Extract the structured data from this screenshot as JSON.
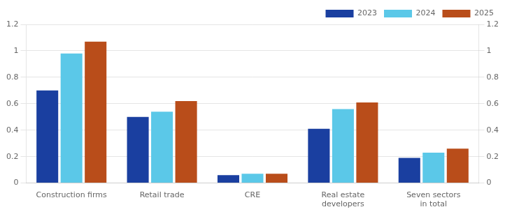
{
  "chart_data": {
    "type": "bar",
    "categories": [
      "Construction firms",
      "Retail trade",
      "CRE",
      "Real estate\ndevelopers",
      "Seven sectors\nin total"
    ],
    "series": [
      {
        "name": "2023",
        "color": "#1a3fa0",
        "values": [
          0.7,
          0.5,
          0.06,
          0.41,
          0.19
        ]
      },
      {
        "name": "2024",
        "color": "#5bc8e8",
        "values": [
          0.98,
          0.54,
          0.07,
          0.56,
          0.23
        ]
      },
      {
        "name": "2025",
        "color": "#b94d1a",
        "values": [
          1.07,
          0.62,
          0.07,
          0.61,
          0.26
        ]
      }
    ],
    "ylim": [
      0,
      1.2
    ],
    "yticks": [
      0,
      0.2,
      0.4,
      0.6,
      0.8,
      1.0,
      1.2
    ],
    "y2lim": [
      0,
      1.2
    ],
    "y2ticks": [
      0,
      0.2,
      0.4,
      0.6,
      0.8,
      1.0,
      1.2
    ],
    "grid": true,
    "legend": "upper right"
  }
}
